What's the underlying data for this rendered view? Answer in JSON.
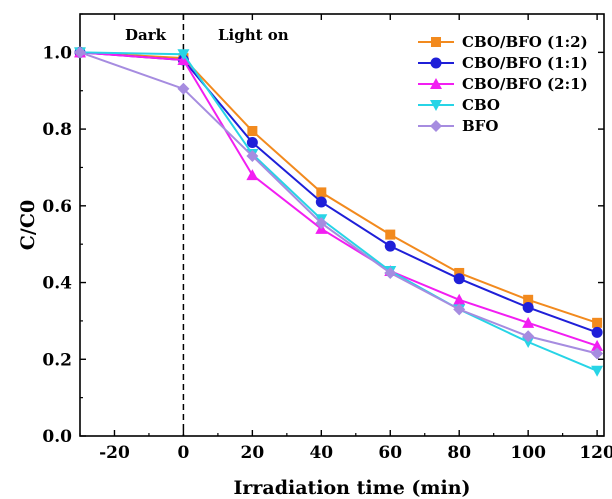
{
  "chart_data": {
    "type": "line",
    "xlabel": "Irradiation time (min)",
    "ylabel": "C/C0",
    "xlim": [
      -30,
      122
    ],
    "ylim": [
      0.0,
      1.1
    ],
    "xticks": [
      -20,
      0,
      20,
      40,
      60,
      80,
      100,
      120
    ],
    "xtick_labels": [
      "-20",
      "0",
      "20",
      "40",
      "60",
      "80",
      "100",
      "120"
    ],
    "yticks": [
      0.0,
      0.2,
      0.4,
      0.6,
      0.8,
      1.0
    ],
    "ytick_labels": [
      "0.0",
      "0.2",
      "0.4",
      "0.6",
      "0.8",
      "1.0"
    ],
    "grid": false,
    "legend_position": "top-right",
    "annotations": [
      "Dark",
      "Light on"
    ],
    "divider_x": 0,
    "x": [
      -30,
      0,
      20,
      40,
      60,
      80,
      100,
      120
    ],
    "series": [
      {
        "name": "CBO/BFO (1:2)",
        "color": "#F28A1E",
        "marker": "square",
        "values": [
          1.0,
          0.985,
          0.795,
          0.635,
          0.525,
          0.425,
          0.355,
          0.295
        ]
      },
      {
        "name": "CBO/BFO (1:1)",
        "color": "#1F1FD8",
        "marker": "circle",
        "values": [
          1.0,
          0.98,
          0.765,
          0.61,
          0.495,
          0.41,
          0.335,
          0.27
        ]
      },
      {
        "name": "CBO/BFO (2:1)",
        "color": "#F21EF2",
        "marker": "triangle",
        "values": [
          1.0,
          0.98,
          0.68,
          0.54,
          0.43,
          0.355,
          0.295,
          0.235
        ]
      },
      {
        "name": "CBO",
        "color": "#27D4E6",
        "marker": "tri-down",
        "values": [
          1.0,
          0.995,
          0.735,
          0.565,
          0.43,
          0.33,
          0.245,
          0.17
        ]
      },
      {
        "name": "BFO",
        "color": "#A68CE0",
        "marker": "diamond",
        "values": [
          1.0,
          0.905,
          0.73,
          0.555,
          0.425,
          0.33,
          0.26,
          0.215
        ]
      }
    ]
  }
}
